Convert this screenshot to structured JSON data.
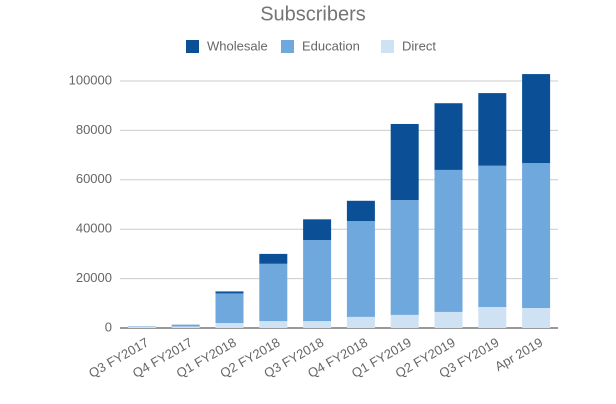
{
  "chart_data": {
    "type": "stacked_bar",
    "title": "Subscribers",
    "categories": [
      "Q3 FY2017",
      "Q4 FY2017",
      "Q1 FY2018",
      "Q2 FY2018",
      "Q3 FY2018",
      "Q4 FY2018",
      "Q1 FY2019",
      "Q2 FY2019",
      "Q3 FY2019",
      "Apr 2019"
    ],
    "series": [
      {
        "name": "Wholesale",
        "color": "#0b4f96",
        "values": [
          0,
          100,
          800,
          4000,
          8400,
          8200,
          30800,
          27000,
          29400,
          36000
        ]
      },
      {
        "name": "Education",
        "color": "#6fa8dc",
        "values": [
          200,
          600,
          12000,
          23200,
          32800,
          38800,
          46500,
          57500,
          57200,
          58700
        ]
      },
      {
        "name": "Direct",
        "color": "#cfe2f3",
        "values": [
          500,
          600,
          2000,
          2800,
          2800,
          4500,
          5300,
          6500,
          8500,
          8100
        ]
      }
    ],
    "ylim": [
      0,
      100000
    ],
    "yticks": [
      0,
      20000,
      40000,
      60000,
      80000,
      100000
    ],
    "grid": true
  }
}
